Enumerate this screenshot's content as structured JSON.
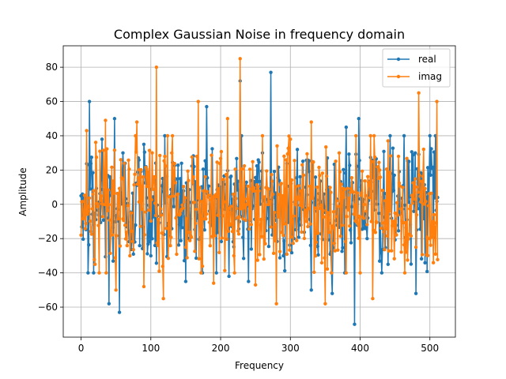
{
  "chart_data": {
    "type": "line",
    "title": "Complex Gaussian Noise in frequency domain",
    "xlabel": "Frequency",
    "ylabel": "Amplitude",
    "xlim": [
      -25.55,
      536.55
    ],
    "ylim": [
      -77.5,
      92.5
    ],
    "xticks": [
      0,
      100,
      200,
      300,
      400,
      500
    ],
    "yticks": [
      -60,
      -40,
      -20,
      0,
      20,
      40,
      60,
      80
    ],
    "grid": true,
    "legend": "top-right",
    "n_points": 512,
    "series": [
      {
        "name": "real",
        "color": "#1f77b4",
        "anchors": [
          [
            0,
            5
          ],
          [
            10,
            -40
          ],
          [
            12,
            60
          ],
          [
            18,
            -40
          ],
          [
            30,
            38
          ],
          [
            40,
            -58
          ],
          [
            48,
            50
          ],
          [
            55,
            -63
          ],
          [
            60,
            30
          ],
          [
            90,
            35
          ],
          [
            100,
            -30
          ],
          [
            120,
            40
          ],
          [
            150,
            -45
          ],
          [
            180,
            57
          ],
          [
            200,
            10
          ],
          [
            212,
            -42
          ],
          [
            228,
            72
          ],
          [
            240,
            -45
          ],
          [
            260,
            30
          ],
          [
            272,
            77
          ],
          [
            290,
            -30
          ],
          [
            310,
            32
          ],
          [
            330,
            -50
          ],
          [
            360,
            -52
          ],
          [
            380,
            45
          ],
          [
            392,
            -70
          ],
          [
            398,
            50
          ],
          [
            410,
            -20
          ],
          [
            440,
            -35
          ],
          [
            470,
            25
          ],
          [
            480,
            -52
          ],
          [
            500,
            40
          ],
          [
            511,
            4
          ]
        ]
      },
      {
        "name": "imag",
        "color": "#ff7f0e",
        "anchors": [
          [
            0,
            -18
          ],
          [
            8,
            43
          ],
          [
            20,
            -35
          ],
          [
            35,
            49
          ],
          [
            50,
            -50
          ],
          [
            70,
            -30
          ],
          [
            80,
            48
          ],
          [
            90,
            -48
          ],
          [
            108,
            80
          ],
          [
            118,
            -55
          ],
          [
            130,
            30
          ],
          [
            150,
            -25
          ],
          [
            168,
            60
          ],
          [
            190,
            -46
          ],
          [
            210,
            50
          ],
          [
            228,
            85
          ],
          [
            250,
            -47
          ],
          [
            260,
            40
          ],
          [
            280,
            -58
          ],
          [
            300,
            38
          ],
          [
            330,
            48
          ],
          [
            350,
            -58
          ],
          [
            370,
            30
          ],
          [
            400,
            -40
          ],
          [
            418,
            -55
          ],
          [
            440,
            37
          ],
          [
            460,
            -10
          ],
          [
            480,
            -25
          ],
          [
            484,
            65
          ],
          [
            500,
            -20
          ],
          [
            510,
            60
          ]
        ]
      }
    ]
  }
}
